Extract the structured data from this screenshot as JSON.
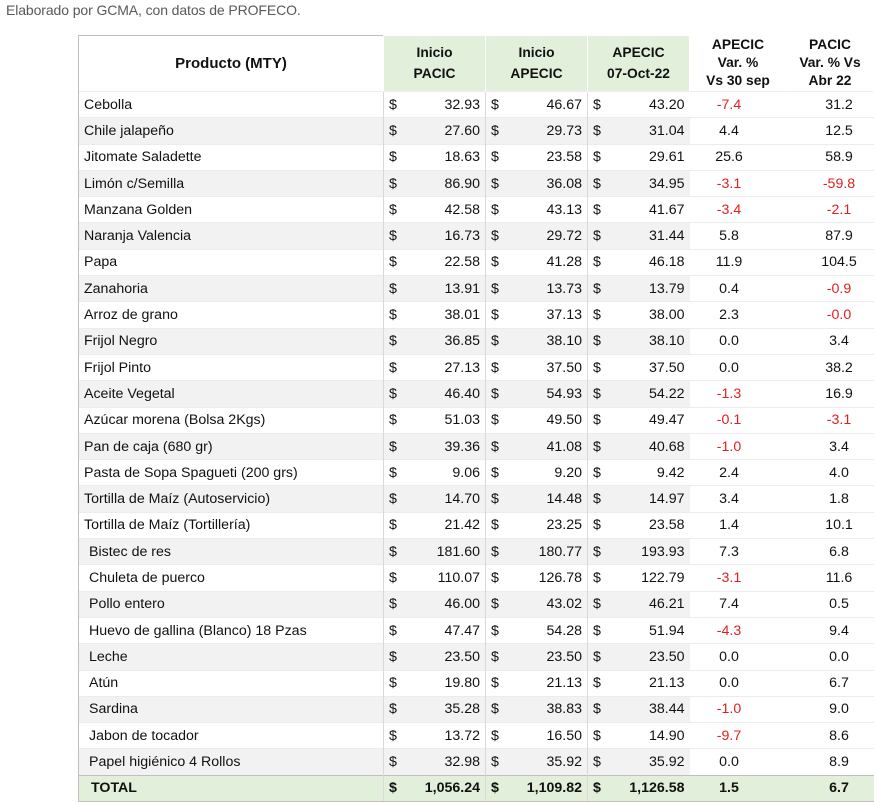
{
  "caption": "Elaborado por GCMA, con datos de PROFECO.",
  "headers": {
    "product": "Producto (MTY)",
    "col1_line1": "Inicio",
    "col1_line2": "PACIC",
    "col2_line1": "Inicio",
    "col2_line2": "APECIC",
    "col3_line1": "APECIC",
    "col3_line2": "07-Oct-22",
    "col4_line1": "APECIC",
    "col4_line2": "Var. %",
    "col4_line3": "Vs  30 sep",
    "col5_line1": "PACIC",
    "col5_line2": "Var. % Vs",
    "col5_line3": "Abr 22"
  },
  "currency_symbol": "$",
  "colors": {
    "header_green": "#e2efda",
    "negative": "#e02020",
    "stripe": "#f2f2f2",
    "caption": "#595959"
  },
  "rows": [
    {
      "product": "Cebolla",
      "pacic": "32.93",
      "apecic": "46.67",
      "oct": "43.20",
      "var30": "-7.4",
      "varabr": "31.2"
    },
    {
      "product": "Chile jalapeño",
      "pacic": "27.60",
      "apecic": "29.73",
      "oct": "31.04",
      "var30": "4.4",
      "varabr": "12.5"
    },
    {
      "product": "Jitomate Saladette",
      "pacic": "18.63",
      "apecic": "23.58",
      "oct": "29.61",
      "var30": "25.6",
      "varabr": "58.9"
    },
    {
      "product": "Limón c/Semilla",
      "pacic": "86.90",
      "apecic": "36.08",
      "oct": "34.95",
      "var30": "-3.1",
      "varabr": "-59.8"
    },
    {
      "product": "Manzana Golden",
      "pacic": "42.58",
      "apecic": "43.13",
      "oct": "41.67",
      "var30": "-3.4",
      "varabr": "-2.1"
    },
    {
      "product": "Naranja Valencia",
      "pacic": "16.73",
      "apecic": "29.72",
      "oct": "31.44",
      "var30": "5.8",
      "varabr": "87.9"
    },
    {
      "product": "Papa",
      "pacic": "22.58",
      "apecic": "41.28",
      "oct": "46.18",
      "var30": "11.9",
      "varabr": "104.5"
    },
    {
      "product": "Zanahoria",
      "pacic": "13.91",
      "apecic": "13.73",
      "oct": "13.79",
      "var30": "0.4",
      "varabr": "-0.9"
    },
    {
      "product": "Arroz de grano",
      "pacic": "38.01",
      "apecic": "37.13",
      "oct": "38.00",
      "var30": "2.3",
      "varabr": "-0.0"
    },
    {
      "product": "Frijol Negro",
      "pacic": "36.85",
      "apecic": "38.10",
      "oct": "38.10",
      "var30": "0.0",
      "varabr": "3.4"
    },
    {
      "product": "Frijol Pinto",
      "pacic": "27.13",
      "apecic": "37.50",
      "oct": "37.50",
      "var30": "0.0",
      "varabr": "38.2"
    },
    {
      "product": "Aceite Vegetal",
      "pacic": "46.40",
      "apecic": "54.93",
      "oct": "54.22",
      "var30": "-1.3",
      "varabr": "16.9"
    },
    {
      "product": "Azúcar morena (Bolsa 2Kgs)",
      "pacic": "51.03",
      "apecic": "49.50",
      "oct": "49.47",
      "var30": "-0.1",
      "varabr": "-3.1"
    },
    {
      "product": "Pan de caja (680 gr)",
      "pacic": "39.36",
      "apecic": "41.08",
      "oct": "40.68",
      "var30": "-1.0",
      "varabr": "3.4"
    },
    {
      "product": "Pasta de Sopa Spagueti (200 grs)",
      "pacic": "9.06",
      "apecic": "9.20",
      "oct": "9.42",
      "var30": "2.4",
      "varabr": "4.0"
    },
    {
      "product": "Tortilla de Maíz (Autoservicio)",
      "pacic": "14.70",
      "apecic": "14.48",
      "oct": "14.97",
      "var30": "3.4",
      "varabr": "1.8"
    },
    {
      "product": "Tortilla de Maíz (Tortillería)",
      "pacic": "21.42",
      "apecic": "23.25",
      "oct": "23.58",
      "var30": "1.4",
      "varabr": "10.1"
    },
    {
      "product": "Bistec de res",
      "pacic": "181.60",
      "apecic": "180.77",
      "oct": "193.93",
      "var30": "7.3",
      "varabr": "6.8",
      "indent": true
    },
    {
      "product": "Chuleta de puerco",
      "pacic": "110.07",
      "apecic": "126.78",
      "oct": "122.79",
      "var30": "-3.1",
      "varabr": "11.6",
      "indent": true
    },
    {
      "product": "Pollo entero",
      "pacic": "46.00",
      "apecic": "43.02",
      "oct": "46.21",
      "var30": "7.4",
      "varabr": "0.5",
      "indent": true
    },
    {
      "product": "Huevo de gallina (Blanco) 18 Pzas",
      "pacic": "47.47",
      "apecic": "54.28",
      "oct": "51.94",
      "var30": "-4.3",
      "varabr": "9.4",
      "indent": true
    },
    {
      "product": "Leche",
      "pacic": "23.50",
      "apecic": "23.50",
      "oct": "23.50",
      "var30": "0.0",
      "varabr": "0.0",
      "indent": true
    },
    {
      "product": "Atún",
      "pacic": "19.80",
      "apecic": "21.13",
      "oct": "21.13",
      "var30": "0.0",
      "varabr": "6.7",
      "indent": true
    },
    {
      "product": "Sardina",
      "pacic": "35.28",
      "apecic": "38.83",
      "oct": "38.44",
      "var30": "-1.0",
      "varabr": "9.0",
      "indent": true
    },
    {
      "product": "Jabon de tocador",
      "pacic": "13.72",
      "apecic": "16.50",
      "oct": "14.90",
      "var30": "-9.7",
      "varabr": "8.6",
      "indent": true
    },
    {
      "product": "Papel higiénico 4 Rollos",
      "pacic": "32.98",
      "apecic": "35.92",
      "oct": "35.92",
      "var30": "0.0",
      "varabr": "8.9",
      "indent": true
    }
  ],
  "total": {
    "product": "TOTAL",
    "pacic": "1,056.24",
    "apecic": "1,109.82",
    "oct": "1,126.58",
    "var30": "1.5",
    "varabr": "6.7"
  }
}
